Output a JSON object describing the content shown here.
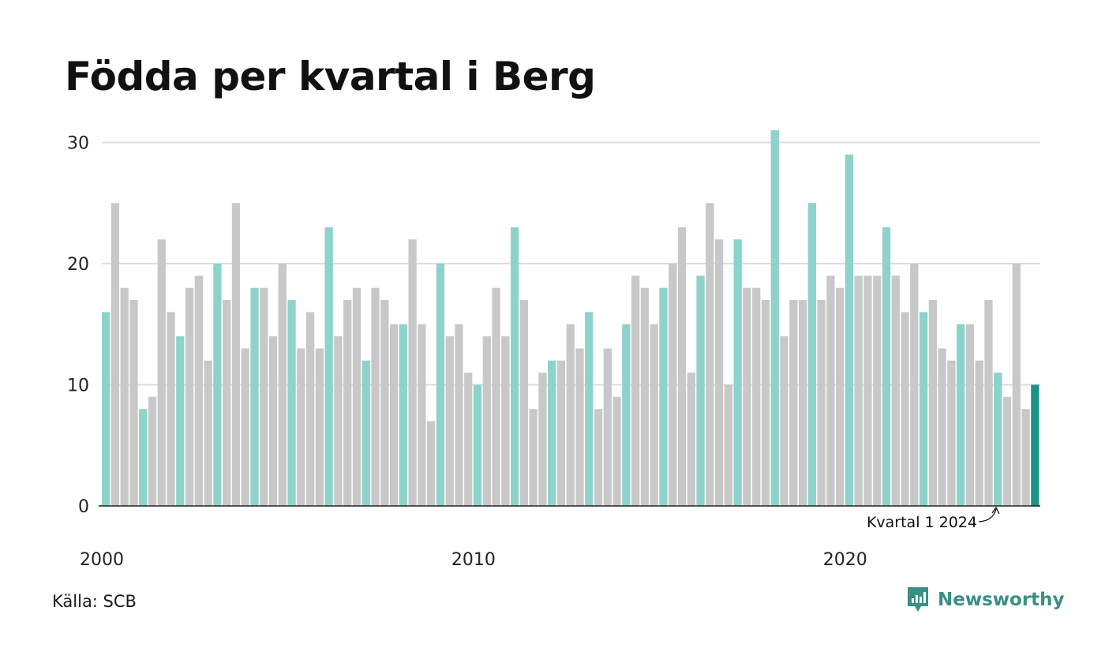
{
  "title": "Födda per kvartal i Berg",
  "source": "Källa: SCB",
  "brand": "Newsworthy",
  "colors": {
    "q1": "#8dd3cb",
    "other": "#c8c8c8",
    "latest": "#1a9384",
    "grid": "#dddddd",
    "axis": "#222222",
    "brand": "#3a8f85"
  },
  "chart_data": {
    "type": "bar",
    "title": "Födda per kvartal i Berg",
    "xlabel": "",
    "ylabel": "",
    "ylim": [
      0,
      31
    ],
    "yticks": [
      0,
      10,
      20,
      30
    ],
    "xtick_labels": [
      "2000",
      "2010",
      "2020"
    ],
    "start_year": 2000,
    "grid": true,
    "annotation": "Kvartal 1 2024",
    "values": [
      16,
      25,
      18,
      17,
      8,
      9,
      22,
      16,
      14,
      18,
      19,
      12,
      20,
      17,
      25,
      13,
      18,
      18,
      14,
      20,
      17,
      13,
      16,
      13,
      23,
      14,
      17,
      18,
      12,
      18,
      17,
      15,
      15,
      22,
      15,
      7,
      20,
      14,
      15,
      11,
      10,
      14,
      18,
      14,
      23,
      17,
      8,
      11,
      12,
      12,
      15,
      13,
      16,
      8,
      13,
      9,
      15,
      19,
      18,
      15,
      18,
      20,
      23,
      11,
      19,
      25,
      22,
      10,
      22,
      18,
      18,
      17,
      31,
      14,
      17,
      17,
      25,
      17,
      19,
      18,
      29,
      19,
      19,
      19,
      23,
      19,
      16,
      20,
      16,
      17,
      13,
      12,
      15,
      15,
      12,
      17,
      11,
      9,
      20,
      8,
      10
    ]
  }
}
